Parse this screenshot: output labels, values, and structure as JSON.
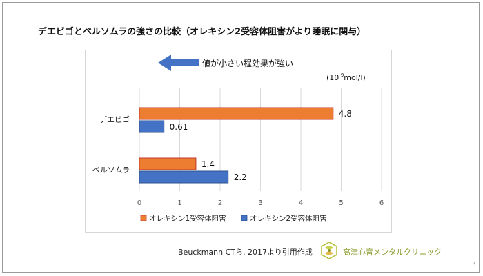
{
  "title": "デエビゴとベルソムラの強さの比較（オレキシン2受容体阻害がより睡眠に関与）",
  "annotation": "値が小さい程効果が強い",
  "unit_prefix": "(10",
  "unit_exp": "-9",
  "unit_suffix": "mol/l)",
  "source": "Beuckmann CTら, 2017より引用作成",
  "clinic": "高津心音メンタルクリニック",
  "page_number": "4",
  "colors": {
    "orexin1": "#ED7D31",
    "orexin2": "#4472C4",
    "arrow": "#4472C4",
    "clinic": "#8a9a2a"
  },
  "chart_data": {
    "type": "bar",
    "orientation": "horizontal",
    "categories": [
      "デエビゴ",
      "ベルソムラ"
    ],
    "series": [
      {
        "name": "オレキシン1受容体阻害",
        "values": [
          4.8,
          1.4
        ]
      },
      {
        "name": "オレキシン2受容体阻害",
        "values": [
          0.61,
          2.2
        ]
      }
    ],
    "xlim": [
      0,
      6
    ],
    "xticks": [
      0,
      1,
      2,
      3,
      4,
      5,
      6
    ],
    "grid": true,
    "legend_position": "bottom"
  }
}
